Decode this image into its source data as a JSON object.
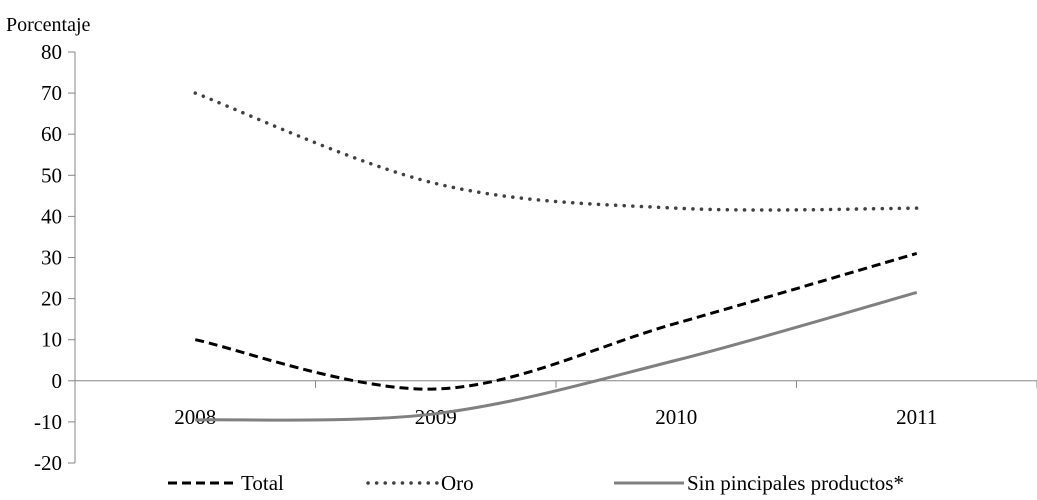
{
  "chart_data": {
    "type": "line",
    "ylabel": "Porcentaje",
    "xlabel": "",
    "categories": [
      "2008",
      "2009",
      "2010",
      "2011"
    ],
    "ylim": [
      -20,
      80
    ],
    "yticks": [
      "80",
      "70",
      "60",
      "50",
      "40",
      "30",
      "20",
      "10",
      "0",
      "-10",
      "-20"
    ],
    "ytick_values": [
      80,
      70,
      60,
      50,
      40,
      30,
      20,
      10,
      0,
      -10,
      -20
    ],
    "grid": false,
    "legend_position": "bottom",
    "series": [
      {
        "name": "Total",
        "values": [
          10,
          -2,
          14,
          31
        ],
        "color": "#000000",
        "style": "dashed"
      },
      {
        "name": "Oro",
        "values": [
          70,
          48,
          42,
          42
        ],
        "color": "#404040",
        "style": "dotted"
      },
      {
        "name": "Sin pincipales productos*",
        "values": [
          -9.5,
          -8,
          5,
          21.5
        ],
        "color": "#808080",
        "style": "solid"
      }
    ]
  }
}
